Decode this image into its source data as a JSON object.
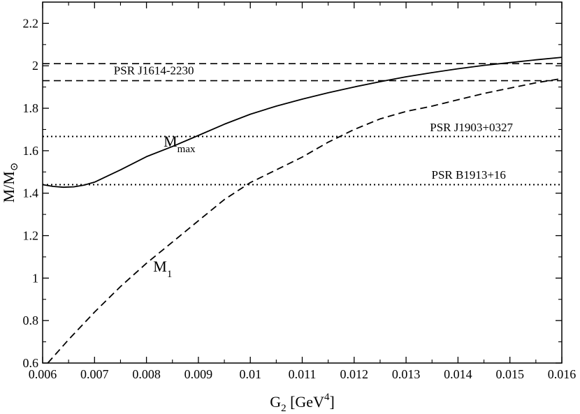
{
  "chart_data": {
    "type": "line",
    "xlabel": {
      "main": "G",
      "sub": "2",
      "unit_pre": " [GeV",
      "sup": "4",
      "unit_post": "]"
    },
    "ylabel": {
      "main": "M/M",
      "sub": "⊙"
    },
    "xlim": [
      0.006,
      0.016
    ],
    "ylim": [
      0.6,
      2.3
    ],
    "x_ticks": [
      0.006,
      0.007,
      0.008,
      0.009,
      0.01,
      0.011,
      0.012,
      0.013,
      0.014,
      0.015,
      0.016
    ],
    "x_tick_labels": [
      "0.006",
      "0.007",
      "0.008",
      "0.009",
      "0.01",
      "0.011",
      "0.012",
      "0.013",
      "0.014",
      "0.015",
      "0.016"
    ],
    "y_ticks": [
      0.6,
      0.8,
      1.0,
      1.2,
      1.4,
      1.6,
      1.8,
      2.0,
      2.2
    ],
    "y_tick_labels": [
      "0.6",
      "0.8",
      "1",
      "1.2",
      "1.4",
      "1.6",
      "1.8",
      "2",
      "2.2"
    ],
    "grid": false,
    "series": [
      {
        "name": "M_max",
        "label_main": "M",
        "label_sub": "max",
        "style": "solid",
        "x": [
          0.006,
          0.0062,
          0.0064,
          0.0066,
          0.0068,
          0.007,
          0.0075,
          0.008,
          0.0085,
          0.009,
          0.0095,
          0.01,
          0.0105,
          0.011,
          0.0115,
          0.012,
          0.0125,
          0.013,
          0.0135,
          0.014,
          0.0145,
          0.015,
          0.0155,
          0.016
        ],
        "y": [
          1.44,
          1.432,
          1.428,
          1.43,
          1.438,
          1.452,
          1.51,
          1.572,
          1.62,
          1.672,
          1.725,
          1.772,
          1.81,
          1.843,
          1.873,
          1.9,
          1.925,
          1.948,
          1.968,
          1.986,
          2.002,
          2.015,
          2.028,
          2.04
        ]
      },
      {
        "name": "M_1",
        "label_main": "M",
        "label_sub": "1",
        "style": "dashed",
        "x": [
          0.0061,
          0.0065,
          0.007,
          0.0075,
          0.008,
          0.0085,
          0.009,
          0.0095,
          0.01,
          0.0105,
          0.011,
          0.0115,
          0.012,
          0.0125,
          0.013,
          0.0135,
          0.014,
          0.0145,
          0.015,
          0.0155,
          0.016
        ],
        "y": [
          0.6,
          0.71,
          0.84,
          0.96,
          1.07,
          1.17,
          1.27,
          1.37,
          1.45,
          1.51,
          1.57,
          1.64,
          1.7,
          1.75,
          1.785,
          1.81,
          1.84,
          1.87,
          1.895,
          1.92,
          1.94
        ]
      }
    ],
    "reference_lines": [
      {
        "y": 2.01,
        "style": "dashed"
      },
      {
        "y": 1.93,
        "style": "dashed"
      },
      {
        "y": 1.667,
        "style": "dotted"
      },
      {
        "y": 1.44,
        "style": "dotted"
      }
    ],
    "annotations": [
      {
        "text": "PSR J1614-2230",
        "x": 0.00737,
        "y": 1.96
      },
      {
        "text": "PSR J1903+0327",
        "x": 0.01346,
        "y": 1.692
      },
      {
        "text": "PSR B1913+16",
        "x": 0.01349,
        "y": 1.468
      }
    ],
    "curve_label_positions": [
      {
        "series": "M_max",
        "x": 0.00833,
        "y": 1.62
      },
      {
        "series": "M_1",
        "x": 0.00813,
        "y": 1.03
      }
    ]
  }
}
